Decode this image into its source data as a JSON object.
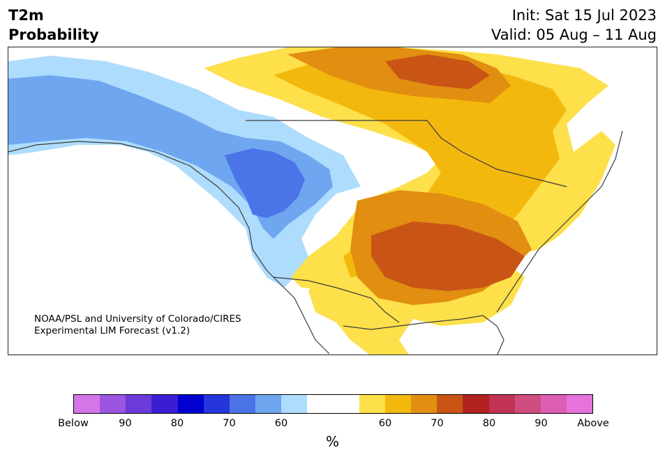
{
  "title": {
    "variable": "T2m",
    "subtitle": "Probability",
    "init": "Init: Sat 15 Jul 2023",
    "valid": "Valid: 05 Aug – 11 Aug"
  },
  "credit": {
    "line1": "NOAA/PSL and University of Colorado/CIRES",
    "line2": "Experimental LIM Forecast (v1.2)"
  },
  "legend": {
    "unit": "%",
    "colors": [
      "#d675e8",
      "#9b55e0",
      "#6b3ad8",
      "#3a1ed2",
      "#0000cf",
      "#2436db",
      "#4a74e8",
      "#6fa6f0",
      "#aedcfc",
      "#ffffff",
      "#ffffff",
      "#fde04a",
      "#f3b80e",
      "#e18e11",
      "#c85516",
      "#b12221",
      "#c03352",
      "#cf4d80",
      "#dc5fb4",
      "#e672dc"
    ],
    "tick_labels": [
      "Below",
      "90",
      "80",
      "70",
      "60",
      "60",
      "70",
      "80",
      "90",
      "Above"
    ]
  },
  "map": {
    "colors": {
      "ocean": "#ffffff",
      "blue_60": "#aedcfc",
      "blue_70": "#6fa6f0",
      "blue_80": "#4a74e8",
      "yellow_60": "#fde04a",
      "yellow_70": "#f3b80e",
      "orange_80": "#e18e11",
      "orange_90": "#c85516",
      "border": "#3a3a3a"
    }
  }
}
